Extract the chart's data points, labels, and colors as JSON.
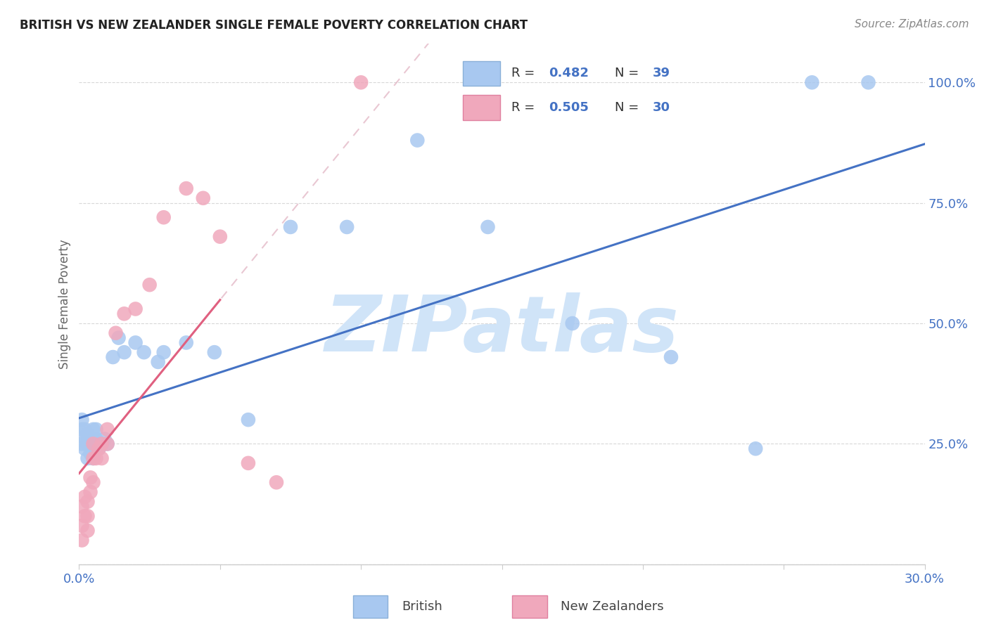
{
  "title": "BRITISH VS NEW ZEALANDER SINGLE FEMALE POVERTY CORRELATION CHART",
  "source": "Source: ZipAtlas.com",
  "ylabel": "Single Female Poverty",
  "R_british": 0.482,
  "N_british": 39,
  "R_nz": 0.505,
  "N_nz": 30,
  "british_color": "#a8c8f0",
  "nz_color": "#f0a8bc",
  "british_line_color": "#4472c4",
  "nz_line_color": "#e06080",
  "nz_dash_color": "#e0b0c0",
  "watermark_color": "#d0e4f8",
  "xlim": [
    0.0,
    0.3
  ],
  "ylim": [
    0.0,
    1.08
  ],
  "british_x": [
    0.001,
    0.001,
    0.001,
    0.002,
    0.002,
    0.002,
    0.003,
    0.003,
    0.003,
    0.004,
    0.004,
    0.005,
    0.005,
    0.005,
    0.006,
    0.006,
    0.007,
    0.008,
    0.009,
    0.01,
    0.012,
    0.014,
    0.016,
    0.02,
    0.023,
    0.028,
    0.03,
    0.038,
    0.048,
    0.06,
    0.075,
    0.095,
    0.12,
    0.145,
    0.175,
    0.21,
    0.24,
    0.26,
    0.28
  ],
  "british_y": [
    0.3,
    0.28,
    0.25,
    0.28,
    0.26,
    0.24,
    0.27,
    0.25,
    0.22,
    0.25,
    0.23,
    0.28,
    0.26,
    0.22,
    0.28,
    0.26,
    0.24,
    0.25,
    0.26,
    0.25,
    0.43,
    0.47,
    0.44,
    0.46,
    0.44,
    0.42,
    0.44,
    0.46,
    0.44,
    0.3,
    0.7,
    0.7,
    0.88,
    0.7,
    0.5,
    0.43,
    0.24,
    1.0,
    1.0
  ],
  "nz_x": [
    0.001,
    0.001,
    0.001,
    0.002,
    0.002,
    0.003,
    0.003,
    0.003,
    0.004,
    0.004,
    0.005,
    0.005,
    0.005,
    0.006,
    0.007,
    0.008,
    0.008,
    0.01,
    0.01,
    0.013,
    0.016,
    0.02,
    0.025,
    0.03,
    0.038,
    0.044,
    0.05,
    0.06,
    0.07,
    0.1
  ],
  "nz_y": [
    0.05,
    0.08,
    0.12,
    0.1,
    0.14,
    0.07,
    0.1,
    0.13,
    0.15,
    0.18,
    0.17,
    0.22,
    0.25,
    0.22,
    0.24,
    0.22,
    0.25,
    0.25,
    0.28,
    0.48,
    0.52,
    0.53,
    0.58,
    0.72,
    0.78,
    0.76,
    0.68,
    0.21,
    0.17,
    1.0
  ]
}
